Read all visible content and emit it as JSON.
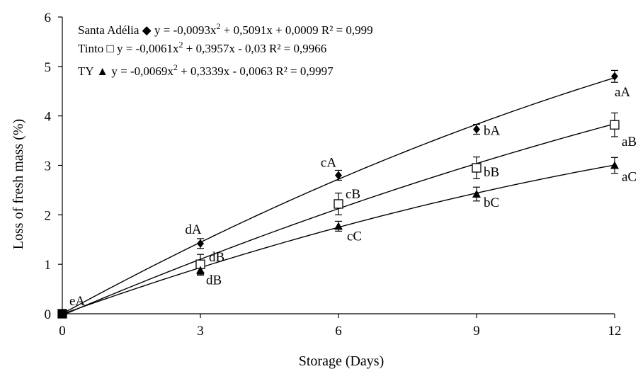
{
  "chart_data": {
    "type": "scatter",
    "xlabel": "Storage (Days)",
    "ylabel": "Loss of fresh mass  (%)",
    "x": [
      0,
      3,
      6,
      9,
      12
    ],
    "xlim": [
      0,
      12
    ],
    "ylim": [
      0,
      6
    ],
    "xticks": [
      "0",
      "3",
      "6",
      "9",
      "12"
    ],
    "yticks": [
      "0",
      "1",
      "2",
      "3",
      "4",
      "5",
      "6"
    ],
    "grid": false,
    "legend_position": "top-left",
    "series": [
      {
        "name": "Santa Adélia",
        "marker": "diamond",
        "values": [
          0,
          1.42,
          2.8,
          3.73,
          4.8
        ],
        "errors": [
          0.08,
          0.1,
          0.1,
          0.1,
          0.12
        ],
        "annotations": [
          "eA",
          "dA",
          "cA",
          "bA",
          "aA"
        ],
        "equation": "y = -0,0093x",
        "equation_rest": " + 0,5091x + 0,0009 R² = 0,999",
        "fit": [
          -0.0093,
          0.5091,
          0.0009
        ]
      },
      {
        "name": "Tinto",
        "marker": "open-square",
        "values": [
          0,
          1.0,
          2.22,
          2.95,
          3.82
        ],
        "errors": [
          0.08,
          0.2,
          0.22,
          0.22,
          0.24
        ],
        "annotations": [
          "",
          "dB",
          "cB",
          "bB",
          "aB"
        ],
        "equation": "y = -0,0061x",
        "equation_rest": " + 0,3957x - 0,03 R² = 0,9966",
        "fit": [
          -0.0061,
          0.3957,
          -0.03
        ]
      },
      {
        "name": "TY",
        "marker": "triangle",
        "values": [
          0,
          0.88,
          1.77,
          2.42,
          3.0
        ],
        "errors": [
          0.08,
          0.1,
          0.1,
          0.14,
          0.16
        ],
        "annotations": [
          "",
          "dB",
          "cC",
          "bC",
          "aC"
        ],
        "equation": "y = -0,0069x",
        "equation_rest": " + 0,3339x - 0,0063 R² = 0,9997",
        "fit": [
          -0.0069,
          0.3339,
          -0.0063
        ]
      }
    ],
    "legend_symbols": [
      "◆",
      "□",
      "▲"
    ],
    "superscript": "2"
  }
}
